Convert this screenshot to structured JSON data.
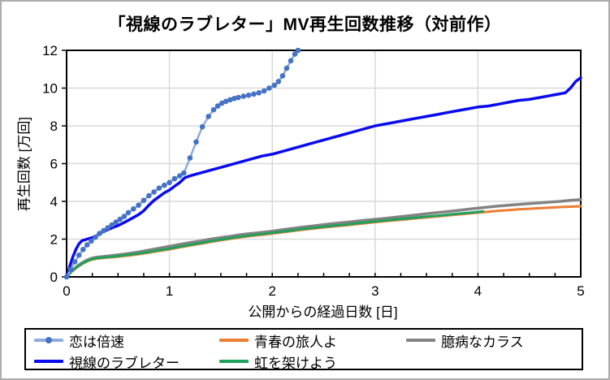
{
  "window": {
    "background": "#ffffff",
    "border_color": "#ababab"
  },
  "chart_data": {
    "type": "line",
    "title": "「視線のラブレター」MV再生回数推移（対前作）",
    "xlabel": "公開からの経過日数 [日]",
    "ylabel": "再生回数 [万回]",
    "xlim": [
      0,
      5
    ],
    "ylim": [
      0,
      12
    ],
    "x_ticks": [
      0,
      1,
      2,
      3,
      4,
      5
    ],
    "y_ticks": [
      0,
      2,
      4,
      6,
      8,
      10,
      12
    ],
    "x_minor_tick_step": 0.25,
    "grid": true,
    "gridline_color": "#d9d9d9",
    "frame_color": "#000000",
    "legend_position": "bottom",
    "legend": [
      {
        "id": "koi-wa-baisoku",
        "label": "恋は倍速",
        "color": "#8faadc",
        "marker_color": "#4472c4",
        "marker": true
      },
      {
        "id": "seishun-no-tabibito-yo",
        "label": "青春の旅人よ",
        "color": "#ed7d31",
        "marker": false
      },
      {
        "id": "okubyou-na-karasu",
        "label": "臆病なカラス",
        "color": "#838383",
        "marker": false
      },
      {
        "id": "shisen-no-love-letter",
        "label": "視線のラブレター",
        "color": "#0a0af0",
        "marker": false
      },
      {
        "id": "niji-wo-kakeyou",
        "label": "虹を架けよう",
        "color": "#1fa15c",
        "marker": false
      }
    ],
    "series": [
      {
        "id": "seishun-no-tabibito-yo",
        "name": "青春の旅人よ",
        "color": "#ed7d31",
        "width": 3,
        "marker": false,
        "points": [
          [
            0,
            0
          ],
          [
            0.05,
            0.28
          ],
          [
            0.1,
            0.5
          ],
          [
            0.15,
            0.68
          ],
          [
            0.2,
            0.82
          ],
          [
            0.25,
            0.92
          ],
          [
            0.3,
            0.97
          ],
          [
            0.4,
            1.02
          ],
          [
            0.5,
            1.07
          ],
          [
            0.6,
            1.13
          ],
          [
            0.7,
            1.2
          ],
          [
            0.8,
            1.28
          ],
          [
            0.9,
            1.37
          ],
          [
            1.0,
            1.46
          ],
          [
            1.1,
            1.56
          ],
          [
            1.2,
            1.66
          ],
          [
            1.3,
            1.75
          ],
          [
            1.4,
            1.85
          ],
          [
            1.5,
            1.94
          ],
          [
            1.6,
            2.02
          ],
          [
            1.7,
            2.1
          ],
          [
            1.8,
            2.17
          ],
          [
            1.9,
            2.23
          ],
          [
            2.0,
            2.29
          ],
          [
            2.1,
            2.36
          ],
          [
            2.2,
            2.43
          ],
          [
            2.3,
            2.5
          ],
          [
            2.4,
            2.56
          ],
          [
            2.5,
            2.62
          ],
          [
            2.6,
            2.67
          ],
          [
            2.7,
            2.72
          ],
          [
            2.8,
            2.78
          ],
          [
            2.9,
            2.84
          ],
          [
            3.0,
            2.9
          ],
          [
            3.1,
            2.95
          ],
          [
            3.2,
            3.0
          ],
          [
            3.3,
            3.05
          ],
          [
            3.4,
            3.1
          ],
          [
            3.5,
            3.15
          ],
          [
            3.6,
            3.2
          ],
          [
            3.7,
            3.25
          ],
          [
            3.8,
            3.3
          ],
          [
            3.9,
            3.35
          ],
          [
            4.0,
            3.4
          ],
          [
            4.1,
            3.45
          ],
          [
            4.2,
            3.5
          ],
          [
            4.3,
            3.54
          ],
          [
            4.4,
            3.58
          ],
          [
            4.5,
            3.61
          ],
          [
            4.6,
            3.64
          ],
          [
            4.7,
            3.67
          ],
          [
            4.8,
            3.7
          ],
          [
            4.9,
            3.72
          ],
          [
            5.0,
            3.74
          ]
        ]
      },
      {
        "id": "okubyou-na-karasu",
        "name": "臆病なカラス",
        "color": "#838383",
        "width": 3.5,
        "marker": false,
        "points": [
          [
            0,
            0
          ],
          [
            0.05,
            0.3
          ],
          [
            0.1,
            0.55
          ],
          [
            0.15,
            0.75
          ],
          [
            0.2,
            0.9
          ],
          [
            0.25,
            1.0
          ],
          [
            0.3,
            1.05
          ],
          [
            0.4,
            1.1
          ],
          [
            0.5,
            1.17
          ],
          [
            0.6,
            1.24
          ],
          [
            0.7,
            1.32
          ],
          [
            0.8,
            1.42
          ],
          [
            0.9,
            1.52
          ],
          [
            1.0,
            1.62
          ],
          [
            1.1,
            1.72
          ],
          [
            1.2,
            1.82
          ],
          [
            1.3,
            1.9
          ],
          [
            1.4,
            2.0
          ],
          [
            1.5,
            2.08
          ],
          [
            1.6,
            2.16
          ],
          [
            1.7,
            2.24
          ],
          [
            1.8,
            2.3
          ],
          [
            1.9,
            2.36
          ],
          [
            2.0,
            2.42
          ],
          [
            2.1,
            2.5
          ],
          [
            2.2,
            2.57
          ],
          [
            2.3,
            2.64
          ],
          [
            2.4,
            2.7
          ],
          [
            2.5,
            2.77
          ],
          [
            2.6,
            2.83
          ],
          [
            2.7,
            2.88
          ],
          [
            2.8,
            2.94
          ],
          [
            2.9,
            3.0
          ],
          [
            3.0,
            3.05
          ],
          [
            3.1,
            3.1
          ],
          [
            3.2,
            3.16
          ],
          [
            3.3,
            3.22
          ],
          [
            3.4,
            3.28
          ],
          [
            3.5,
            3.34
          ],
          [
            3.6,
            3.4
          ],
          [
            3.7,
            3.46
          ],
          [
            3.8,
            3.52
          ],
          [
            3.9,
            3.58
          ],
          [
            4.0,
            3.64
          ],
          [
            4.1,
            3.7
          ],
          [
            4.2,
            3.75
          ],
          [
            4.3,
            3.8
          ],
          [
            4.4,
            3.84
          ],
          [
            4.5,
            3.88
          ],
          [
            4.6,
            3.92
          ],
          [
            4.7,
            3.96
          ],
          [
            4.8,
            4.0
          ],
          [
            4.9,
            4.05
          ],
          [
            5.0,
            4.1
          ]
        ]
      },
      {
        "id": "niji-wo-kakeyou",
        "name": "虹を架けよう",
        "color": "#1fa15c",
        "width": 3,
        "marker": false,
        "points": [
          [
            0,
            0
          ],
          [
            0.05,
            0.3
          ],
          [
            0.1,
            0.53
          ],
          [
            0.15,
            0.7
          ],
          [
            0.2,
            0.85
          ],
          [
            0.25,
            0.95
          ],
          [
            0.3,
            1.0
          ],
          [
            0.4,
            1.05
          ],
          [
            0.5,
            1.1
          ],
          [
            0.6,
            1.17
          ],
          [
            0.7,
            1.24
          ],
          [
            0.8,
            1.32
          ],
          [
            0.9,
            1.41
          ],
          [
            1.0,
            1.5
          ],
          [
            1.1,
            1.6
          ],
          [
            1.2,
            1.7
          ],
          [
            1.3,
            1.79
          ],
          [
            1.4,
            1.89
          ],
          [
            1.5,
            1.98
          ],
          [
            1.6,
            2.06
          ],
          [
            1.7,
            2.14
          ],
          [
            1.8,
            2.21
          ],
          [
            1.9,
            2.27
          ],
          [
            2.0,
            2.33
          ],
          [
            2.1,
            2.4
          ],
          [
            2.2,
            2.47
          ],
          [
            2.3,
            2.54
          ],
          [
            2.4,
            2.6
          ],
          [
            2.5,
            2.66
          ],
          [
            2.6,
            2.71
          ],
          [
            2.7,
            2.76
          ],
          [
            2.8,
            2.82
          ],
          [
            2.9,
            2.88
          ],
          [
            3.0,
            2.94
          ],
          [
            3.1,
            2.99
          ],
          [
            3.2,
            3.04
          ],
          [
            3.3,
            3.09
          ],
          [
            3.4,
            3.14
          ],
          [
            3.5,
            3.19
          ],
          [
            3.6,
            3.24
          ],
          [
            3.7,
            3.29
          ],
          [
            3.8,
            3.34
          ],
          [
            3.9,
            3.39
          ],
          [
            4.0,
            3.44
          ],
          [
            4.05,
            3.47
          ]
        ]
      },
      {
        "id": "shisen-no-love-letter",
        "name": "視線のラブレター",
        "color": "#0a0af0",
        "width": 3.5,
        "marker": false,
        "points": [
          [
            0,
            0
          ],
          [
            0.03,
            0.55
          ],
          [
            0.06,
            1.05
          ],
          [
            0.09,
            1.45
          ],
          [
            0.12,
            1.75
          ],
          [
            0.15,
            1.92
          ],
          [
            0.2,
            2.0
          ],
          [
            0.25,
            2.08
          ],
          [
            0.3,
            2.2
          ],
          [
            0.35,
            2.38
          ],
          [
            0.4,
            2.5
          ],
          [
            0.45,
            2.62
          ],
          [
            0.5,
            2.72
          ],
          [
            0.55,
            2.85
          ],
          [
            0.6,
            3.0
          ],
          [
            0.65,
            3.15
          ],
          [
            0.7,
            3.3
          ],
          [
            0.75,
            3.5
          ],
          [
            0.8,
            3.8
          ],
          [
            0.85,
            4.05
          ],
          [
            0.9,
            4.25
          ],
          [
            0.95,
            4.45
          ],
          [
            1.0,
            4.6
          ],
          [
            1.05,
            4.8
          ],
          [
            1.1,
            5.0
          ],
          [
            1.15,
            5.25
          ],
          [
            1.2,
            5.35
          ],
          [
            1.3,
            5.5
          ],
          [
            1.4,
            5.65
          ],
          [
            1.5,
            5.8
          ],
          [
            1.6,
            5.95
          ],
          [
            1.7,
            6.1
          ],
          [
            1.8,
            6.25
          ],
          [
            1.9,
            6.4
          ],
          [
            2.0,
            6.5
          ],
          [
            2.1,
            6.65
          ],
          [
            2.2,
            6.8
          ],
          [
            2.3,
            6.95
          ],
          [
            2.4,
            7.1
          ],
          [
            2.5,
            7.25
          ],
          [
            2.6,
            7.4
          ],
          [
            2.7,
            7.55
          ],
          [
            2.8,
            7.7
          ],
          [
            2.9,
            7.85
          ],
          [
            3.0,
            8.0
          ],
          [
            3.1,
            8.1
          ],
          [
            3.2,
            8.2
          ],
          [
            3.3,
            8.3
          ],
          [
            3.4,
            8.4
          ],
          [
            3.5,
            8.5
          ],
          [
            3.6,
            8.6
          ],
          [
            3.7,
            8.7
          ],
          [
            3.8,
            8.8
          ],
          [
            3.9,
            8.9
          ],
          [
            4.0,
            9.0
          ],
          [
            4.1,
            9.05
          ],
          [
            4.2,
            9.15
          ],
          [
            4.3,
            9.25
          ],
          [
            4.4,
            9.35
          ],
          [
            4.5,
            9.4
          ],
          [
            4.6,
            9.5
          ],
          [
            4.7,
            9.6
          ],
          [
            4.75,
            9.65
          ],
          [
            4.8,
            9.7
          ],
          [
            4.85,
            9.75
          ],
          [
            4.9,
            10.0
          ],
          [
            4.95,
            10.35
          ],
          [
            5.0,
            10.55
          ]
        ]
      },
      {
        "id": "koi-wa-baisoku",
        "name": "恋は倍速",
        "color": "#8faadc",
        "width": 2.5,
        "marker": true,
        "marker_color": "#4472c4",
        "marker_radius": 3.3,
        "points": [
          [
            0,
            0
          ],
          [
            0.04,
            0.4
          ],
          [
            0.08,
            0.8
          ],
          [
            0.12,
            1.15
          ],
          [
            0.16,
            1.45
          ],
          [
            0.2,
            1.7
          ],
          [
            0.24,
            1.9
          ],
          [
            0.28,
            2.1
          ],
          [
            0.32,
            2.3
          ],
          [
            0.36,
            2.45
          ],
          [
            0.4,
            2.6
          ],
          [
            0.44,
            2.75
          ],
          [
            0.48,
            2.9
          ],
          [
            0.52,
            3.05
          ],
          [
            0.56,
            3.2
          ],
          [
            0.6,
            3.4
          ],
          [
            0.65,
            3.6
          ],
          [
            0.7,
            3.8
          ],
          [
            0.75,
            4.05
          ],
          [
            0.8,
            4.3
          ],
          [
            0.85,
            4.5
          ],
          [
            0.9,
            4.7
          ],
          [
            0.95,
            4.85
          ],
          [
            1.0,
            5.0
          ],
          [
            1.05,
            5.2
          ],
          [
            1.1,
            5.35
          ],
          [
            1.14,
            5.5
          ],
          [
            1.2,
            6.3
          ],
          [
            1.26,
            7.15
          ],
          [
            1.32,
            7.95
          ],
          [
            1.38,
            8.5
          ],
          [
            1.43,
            8.85
          ],
          [
            1.47,
            9.05
          ],
          [
            1.51,
            9.2
          ],
          [
            1.55,
            9.3
          ],
          [
            1.59,
            9.38
          ],
          [
            1.63,
            9.45
          ],
          [
            1.67,
            9.5
          ],
          [
            1.72,
            9.57
          ],
          [
            1.77,
            9.62
          ],
          [
            1.82,
            9.68
          ],
          [
            1.87,
            9.75
          ],
          [
            1.92,
            9.85
          ],
          [
            1.97,
            10.0
          ],
          [
            2.02,
            10.15
          ],
          [
            2.06,
            10.35
          ],
          [
            2.1,
            10.65
          ],
          [
            2.14,
            11.05
          ],
          [
            2.18,
            11.45
          ],
          [
            2.22,
            11.8
          ],
          [
            2.25,
            12.0
          ]
        ]
      }
    ]
  }
}
